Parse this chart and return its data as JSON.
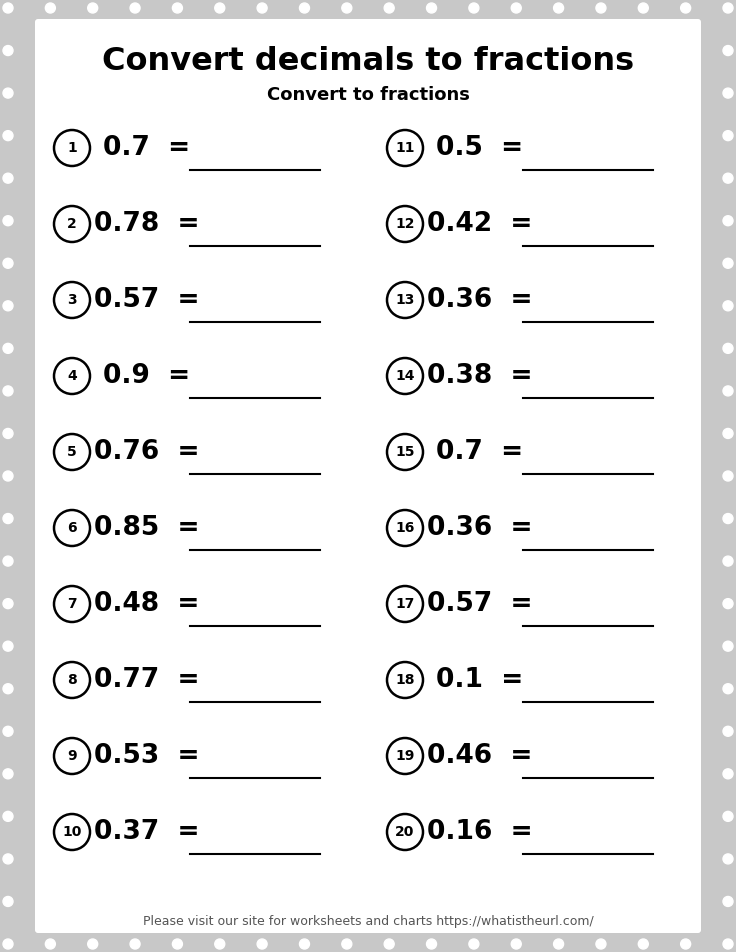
{
  "title": "Convert decimals to fractions",
  "subtitle": "Convert to fractions",
  "footer": "Please visit our site for worksheets and charts https://whatistheurl.com/",
  "background_color": "#c8c8c8",
  "paper_color": "#ffffff",
  "text_color": "#000000",
  "left_questions": [
    {
      "num": "1",
      "value": "0.7"
    },
    {
      "num": "2",
      "value": "0.78"
    },
    {
      "num": "3",
      "value": "0.57"
    },
    {
      "num": "4",
      "value": "0.9"
    },
    {
      "num": "5",
      "value": "0.76"
    },
    {
      "num": "6",
      "value": "0.85"
    },
    {
      "num": "7",
      "value": "0.48"
    },
    {
      "num": "8",
      "value": "0.77"
    },
    {
      "num": "9",
      "value": "0.53"
    },
    {
      "num": "10",
      "value": "0.37"
    }
  ],
  "right_questions": [
    {
      "num": "11",
      "value": "0.5"
    },
    {
      "num": "12",
      "value": "0.42"
    },
    {
      "num": "13",
      "value": "0.36"
    },
    {
      "num": "14",
      "value": "0.38"
    },
    {
      "num": "15",
      "value": "0.7"
    },
    {
      "num": "16",
      "value": "0.36"
    },
    {
      "num": "17",
      "value": "0.57"
    },
    {
      "num": "18",
      "value": "0.1"
    },
    {
      "num": "19",
      "value": "0.46"
    },
    {
      "num": "20",
      "value": "0.16"
    }
  ],
  "title_fontsize": 23,
  "subtitle_fontsize": 13,
  "question_fontsize": 19,
  "num_fontsize": 10,
  "footer_fontsize": 9
}
